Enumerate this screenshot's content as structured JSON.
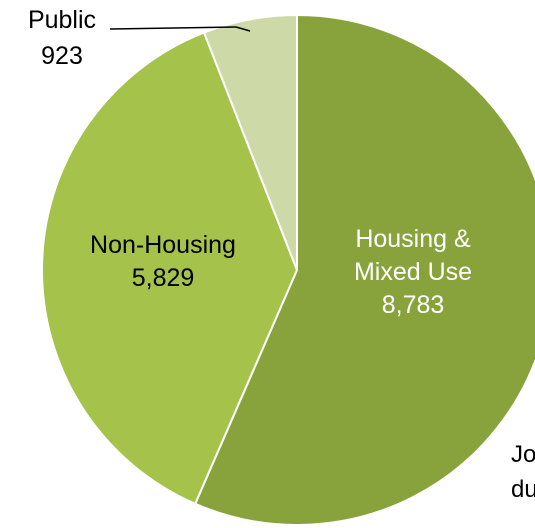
{
  "chart_data": {
    "type": "pie",
    "slices": [
      {
        "label_lines": [
          "Housing &",
          "Mixed Use"
        ],
        "value": 8783,
        "value_label": "8,783",
        "color": "#89a33c",
        "text_color": "#ffffff"
      },
      {
        "label_lines": [
          "Non-Housing"
        ],
        "value": 5829,
        "value_label": "5,829",
        "color": "#a5c24a",
        "text_color": "#000000"
      },
      {
        "label_lines": [
          "Public"
        ],
        "value": 923,
        "value_label": "923",
        "color": "#cdd9a6",
        "text_color": "#000000"
      }
    ],
    "start_angle": "12 o'clock",
    "direction": "clockwise",
    "slice_border_color": "#ffffff",
    "partial_annotation": {
      "lines": [
        "Jo",
        "du"
      ]
    }
  }
}
